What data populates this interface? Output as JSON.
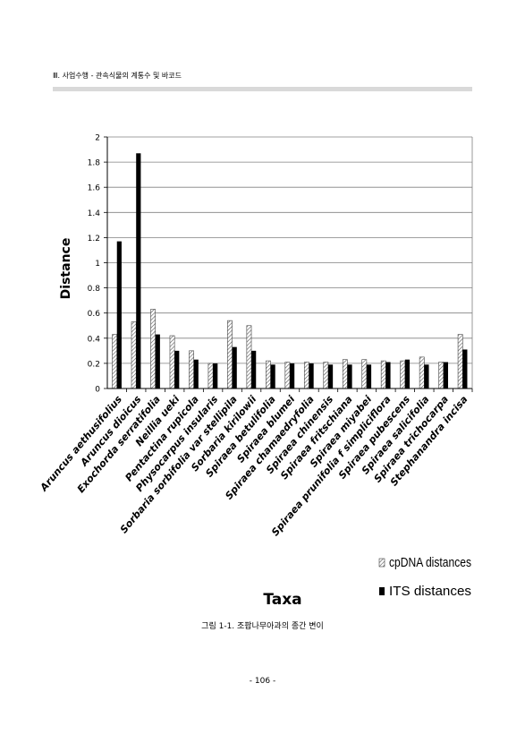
{
  "header": {
    "text": "Ⅲ. 사업수행 - 관속식물의 계통수 및 바코드"
  },
  "figure": {
    "caption": "그림 1-1. 조팝나무아과의 종간 변이"
  },
  "footer": {
    "page_number": "- 106 -"
  },
  "chart_data": {
    "type": "bar",
    "xlabel": "Taxa",
    "ylabel": "Distance",
    "ylim": [
      0,
      2
    ],
    "yticks": [
      "0",
      "0.2",
      "0.4",
      "0.6",
      "0.8",
      "1",
      "1.2",
      "1.4",
      "1.6",
      "1.8",
      "2"
    ],
    "grid": true,
    "legend_position": "bottom-right",
    "categories": [
      "Aruncus aethusifolius",
      "Aruncus dioicus",
      "Exochorda serratifolia",
      "Neillia ueki",
      "Pentactina rupicola",
      "Physocarpus insularis",
      "Sorbaria sorbifolia var stellipila",
      "Sorbaria kirilowii",
      "Spiraea betulifolia",
      "Spiraea blumei",
      "Spiraea chamaedryfolia",
      "Spiraea chinensis",
      "Spiraea fritschiana",
      "Spiraea miyabei",
      "Spiraea prunifolia f simpliciflora",
      "Spiraea pubescens",
      "Spiraea salicifolia",
      "Spiraea trichocarpa",
      "Stephanandra incisa"
    ],
    "series": [
      {
        "name": "cpDNA distances",
        "pattern": "hatched",
        "values": [
          0.43,
          0.53,
          0.63,
          0.42,
          0.3,
          0.2,
          0.54,
          0.5,
          0.22,
          0.21,
          0.21,
          0.21,
          0.23,
          0.23,
          0.22,
          0.22,
          0.25,
          0.21,
          0.43
        ]
      },
      {
        "name": "ITS distances",
        "color": "#000000",
        "values": [
          1.17,
          1.87,
          0.43,
          0.3,
          0.23,
          0.2,
          0.33,
          0.3,
          0.19,
          0.2,
          0.2,
          0.19,
          0.19,
          0.19,
          0.21,
          0.23,
          0.19,
          0.21,
          0.31
        ]
      }
    ]
  }
}
